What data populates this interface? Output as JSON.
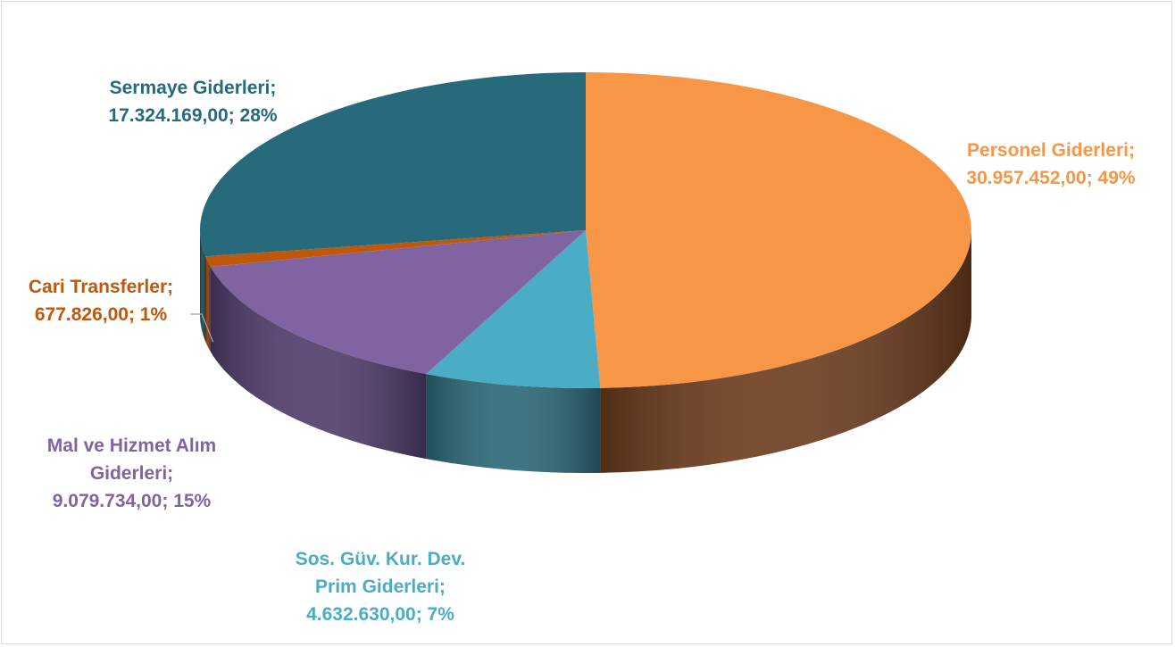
{
  "chart_data": {
    "type": "pie",
    "style": "3d",
    "title": "",
    "slices": [
      {
        "name": "Personel Giderleri",
        "value": 30957452.0,
        "value_label": "30.957.452,00",
        "percent_label": "49%",
        "color": "#F79646",
        "side_color": "#6B3A1C",
        "label_lines": [
          "Personel Giderleri;",
          "30.957.452,00; 49%"
        ]
      },
      {
        "name": "Sos. Güv. Kur. Dev. Prim Giderleri",
        "value": 4632630.0,
        "value_label": "4.632.630,00",
        "percent_label": "7%",
        "color": "#4BACC6",
        "side_color": "#2A6677",
        "label_lines": [
          "Sos. Güv. Kur. Dev.",
          "Prim Giderleri;",
          "4.632.630,00; 7%"
        ]
      },
      {
        "name": "Mal ve Hizmet Alım Giderleri",
        "value": 9079734.0,
        "value_label": "9.079.734,00",
        "percent_label": "15%",
        "color": "#8064A2",
        "side_color": "#4E3A6A",
        "label_lines": [
          "Mal ve Hizmet Alım",
          "Giderleri;",
          "9.079.734,00; 15%"
        ]
      },
      {
        "name": "Cari Transferler",
        "value": 677826.0,
        "value_label": "677.826,00",
        "percent_label": "1%",
        "color": "#C0580B",
        "side_color": "#7A3608",
        "label_lines": [
          "Cari Transferler;",
          "677.826,00; 1%"
        ]
      },
      {
        "name": "Sermaye Giderleri",
        "value": 17324169.0,
        "value_label": "17.324.169,00",
        "percent_label": "28%",
        "color": "#276A7C",
        "side_color": "#174550",
        "label_lines": [
          "Sermaye Giderleri;",
          "17.324.169,00; 28%"
        ]
      }
    ]
  }
}
